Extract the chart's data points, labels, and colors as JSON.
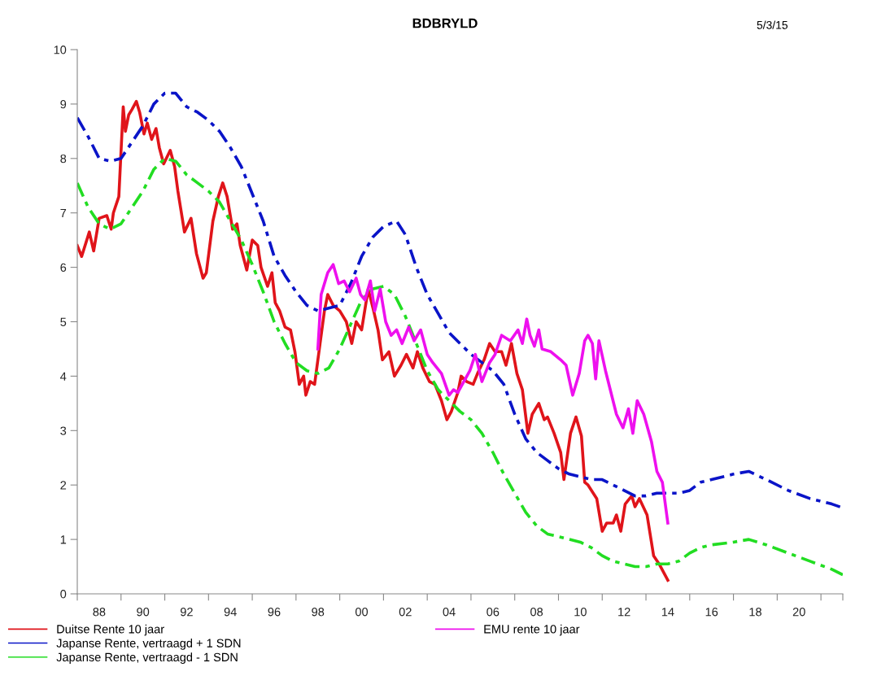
{
  "chart_data": {
    "type": "line",
    "title": "BDBRYLD",
    "annotations": [
      "5/3/15"
    ],
    "xlim": [
      1987,
      2022
    ],
    "ylim": [
      0,
      10
    ],
    "yticks": [
      0,
      1,
      2,
      3,
      4,
      5,
      6,
      7,
      8,
      9,
      10
    ],
    "xticks": [
      {
        "value": 1987,
        "label": null
      },
      {
        "value": 1988,
        "label": "88"
      },
      {
        "value": 1989,
        "label": null
      },
      {
        "value": 1990,
        "label": "90"
      },
      {
        "value": 1991,
        "label": null
      },
      {
        "value": 1992,
        "label": "92"
      },
      {
        "value": 1993,
        "label": null
      },
      {
        "value": 1994,
        "label": "94"
      },
      {
        "value": 1995,
        "label": null
      },
      {
        "value": 1996,
        "label": "96"
      },
      {
        "value": 1997,
        "label": null
      },
      {
        "value": 1998,
        "label": "98"
      },
      {
        "value": 1999,
        "label": null
      },
      {
        "value": 2000,
        "label": "00"
      },
      {
        "value": 2001,
        "label": null
      },
      {
        "value": 2002,
        "label": "02"
      },
      {
        "value": 2003,
        "label": null
      },
      {
        "value": 2004,
        "label": "04"
      },
      {
        "value": 2005,
        "label": null
      },
      {
        "value": 2006,
        "label": "06"
      },
      {
        "value": 2007,
        "label": null
      },
      {
        "value": 2008,
        "label": "08"
      },
      {
        "value": 2009,
        "label": null
      },
      {
        "value": 2010,
        "label": "10"
      },
      {
        "value": 2011,
        "label": null
      },
      {
        "value": 2012,
        "label": "12"
      },
      {
        "value": 2013,
        "label": null
      },
      {
        "value": 2014,
        "label": "14"
      },
      {
        "value": 2015,
        "label": null
      },
      {
        "value": 2016,
        "label": "16"
      },
      {
        "value": 2017,
        "label": null
      },
      {
        "value": 2018,
        "label": "18"
      },
      {
        "value": 2019,
        "label": null
      },
      {
        "value": 2020,
        "label": "20"
      },
      {
        "value": 2021,
        "label": null
      },
      {
        "value": 2022,
        "label": null
      }
    ],
    "grid": false,
    "legend": "bottom",
    "series": [
      {
        "name": "Duitse Rente 10 jaar",
        "color": "#e0141a",
        "line_style": "solid",
        "x": [
          1987.0,
          1987.2,
          1987.55,
          1987.75,
          1988.0,
          1988.35,
          1988.55,
          1988.65,
          1988.9,
          1989.1,
          1989.2,
          1989.35,
          1989.5,
          1989.7,
          1989.85,
          1990.05,
          1990.2,
          1990.4,
          1990.6,
          1990.75,
          1990.95,
          1991.25,
          1991.45,
          1991.6,
          1991.9,
          1992.2,
          1992.45,
          1992.75,
          1992.9,
          1993.2,
          1993.45,
          1993.65,
          1993.85,
          1994.1,
          1994.3,
          1994.45,
          1994.75,
          1995.0,
          1995.25,
          1995.4,
          1995.7,
          1995.9,
          1996.05,
          1996.25,
          1996.5,
          1996.75,
          1996.95,
          1997.15,
          1997.35,
          1997.45,
          1997.65,
          1997.85,
          1998.1,
          1998.3,
          1998.45,
          1998.7,
          1999.0,
          1999.3,
          1999.55,
          1999.75,
          2000.0,
          2000.3,
          2000.55,
          2000.75,
          2000.95,
          2001.25,
          2001.5,
          2001.8,
          2002.05,
          2002.35,
          2002.55,
          2002.8,
          2003.1,
          2003.35,
          2003.65,
          2003.9,
          2004.1,
          2004.4,
          2004.55,
          2004.8,
          2005.1,
          2005.3,
          2005.6,
          2005.85,
          2006.1,
          2006.4,
          2006.6,
          2006.85,
          2007.1,
          2007.35,
          2007.6,
          2007.8,
          2008.1,
          2008.35,
          2008.5,
          2008.8,
          2009.1,
          2009.25,
          2009.55,
          2009.8,
          2010.05,
          2010.2,
          2010.35,
          2010.75,
          2011.0,
          2011.2,
          2011.5,
          2011.65,
          2011.85,
          2012.05,
          2012.35,
          2012.5,
          2012.7,
          2013.05,
          2013.35,
          2013.6,
          2014.0
        ],
        "values": [
          6.4,
          6.2,
          6.65,
          6.3,
          6.9,
          6.95,
          6.7,
          7.0,
          7.3,
          8.95,
          8.5,
          8.8,
          8.9,
          9.05,
          8.85,
          8.45,
          8.65,
          8.35,
          8.55,
          8.2,
          7.9,
          8.15,
          7.85,
          7.4,
          6.65,
          6.9,
          6.25,
          5.8,
          5.9,
          6.85,
          7.3,
          7.55,
          7.3,
          6.7,
          6.8,
          6.4,
          5.95,
          6.5,
          6.4,
          6.0,
          5.65,
          5.9,
          5.35,
          5.2,
          4.9,
          4.85,
          4.45,
          3.85,
          4.0,
          3.65,
          3.9,
          3.85,
          4.6,
          5.2,
          5.5,
          5.3,
          5.2,
          5.0,
          4.6,
          5.0,
          4.85,
          5.6,
          5.2,
          4.85,
          4.3,
          4.45,
          4.0,
          4.2,
          4.4,
          4.15,
          4.45,
          4.15,
          3.9,
          3.85,
          3.55,
          3.2,
          3.35,
          3.7,
          4.0,
          3.9,
          3.85,
          4.05,
          4.3,
          4.6,
          4.45,
          4.45,
          4.2,
          4.6,
          4.05,
          3.75,
          2.95,
          3.3,
          3.5,
          3.2,
          3.25,
          2.95,
          2.6,
          2.1,
          2.95,
          3.25,
          2.9,
          2.05,
          2.0,
          1.75,
          1.15,
          1.3,
          1.3,
          1.45,
          1.15,
          1.65,
          1.8,
          1.6,
          1.75,
          1.45,
          0.7,
          0.55,
          0.25
        ]
      },
      {
        "name": "Japanse Rente, vertraagd + 1 SDN",
        "color": "#0a14c8",
        "line_style": "dashed",
        "x": [
          1987.0,
          1987.5,
          1988.0,
          1988.5,
          1989.0,
          1989.5,
          1990.0,
          1990.5,
          1991.0,
          1991.5,
          1992.0,
          1992.5,
          1993.0,
          1993.5,
          1994.0,
          1994.5,
          1995.0,
          1995.5,
          1996.0,
          1996.5,
          1997.0,
          1997.5,
          1998.0,
          1998.5,
          1999.0,
          1999.5,
          2000.0,
          2000.5,
          2001.0,
          2001.6,
          2002.0,
          2002.5,
          2003.0,
          2003.5,
          2004.0,
          2004.5,
          2005.0,
          2005.5,
          2006.0,
          2006.5,
          2007.0,
          2007.5,
          2008.0,
          2008.5,
          2009.0,
          2009.5,
          2010.0,
          2010.5,
          2011.0,
          2011.5,
          2012.0,
          2012.5,
          2013.0,
          2013.5,
          2014.0,
          2014.5,
          2015.0,
          2015.5,
          2016.0,
          2017.0,
          2017.7,
          2018.5,
          2019.5,
          2020.5,
          2021.5,
          2022.0
        ],
        "values": [
          8.75,
          8.4,
          8.0,
          7.95,
          8.0,
          8.3,
          8.6,
          9.0,
          9.2,
          9.2,
          8.95,
          8.85,
          8.7,
          8.5,
          8.2,
          7.85,
          7.35,
          6.85,
          6.2,
          5.85,
          5.55,
          5.3,
          5.2,
          5.25,
          5.3,
          5.7,
          6.2,
          6.55,
          6.75,
          6.85,
          6.6,
          6.0,
          5.5,
          5.15,
          4.8,
          4.6,
          4.4,
          4.25,
          4.1,
          3.85,
          3.3,
          2.85,
          2.6,
          2.45,
          2.3,
          2.2,
          2.15,
          2.1,
          2.1,
          2.0,
          1.9,
          1.8,
          1.8,
          1.85,
          1.85,
          1.85,
          1.9,
          2.05,
          2.1,
          2.2,
          2.25,
          2.1,
          1.9,
          1.75,
          1.65,
          1.58
        ]
      },
      {
        "name": "Japanse Rente, vertraagd - 1 SDN",
        "color": "#22dd22",
        "line_style": "dashed",
        "x": [
          1987.0,
          1987.5,
          1988.0,
          1988.5,
          1989.0,
          1989.5,
          1990.0,
          1990.5,
          1991.0,
          1991.5,
          1992.0,
          1992.5,
          1993.0,
          1993.5,
          1994.0,
          1994.5,
          1995.0,
          1995.5,
          1996.0,
          1996.5,
          1997.0,
          1997.5,
          1998.0,
          1998.5,
          1999.0,
          1999.5,
          2000.0,
          2000.5,
          2001.0,
          2001.5,
          2002.0,
          2002.5,
          2003.0,
          2003.5,
          2004.0,
          2004.5,
          2005.0,
          2005.5,
          2006.0,
          2006.5,
          2007.0,
          2007.5,
          2008.0,
          2008.5,
          2009.0,
          2009.5,
          2010.0,
          2010.5,
          2011.0,
          2011.5,
          2012.0,
          2012.5,
          2013.0,
          2013.5,
          2014.0,
          2014.5,
          2015.0,
          2015.5,
          2016.0,
          2017.0,
          2017.7,
          2018.5,
          2019.5,
          2020.5,
          2021.5,
          2022.0
        ],
        "values": [
          7.55,
          7.1,
          6.8,
          6.7,
          6.8,
          7.1,
          7.4,
          7.8,
          8.0,
          7.95,
          7.7,
          7.55,
          7.4,
          7.2,
          6.85,
          6.5,
          6.05,
          5.55,
          5.0,
          4.6,
          4.25,
          4.1,
          4.05,
          4.15,
          4.5,
          4.95,
          5.4,
          5.6,
          5.65,
          5.5,
          5.1,
          4.6,
          4.1,
          3.75,
          3.55,
          3.35,
          3.2,
          2.95,
          2.6,
          2.2,
          1.85,
          1.5,
          1.25,
          1.1,
          1.05,
          1.0,
          0.95,
          0.85,
          0.7,
          0.6,
          0.55,
          0.5,
          0.5,
          0.55,
          0.55,
          0.6,
          0.75,
          0.85,
          0.9,
          0.95,
          1.0,
          0.9,
          0.75,
          0.6,
          0.45,
          0.35
        ]
      },
      {
        "name": "EMU rente 10 jaar",
        "color": "#ee10ee",
        "line_style": "solid",
        "x": [
          1998.0,
          1998.15,
          1998.45,
          1998.7,
          1998.95,
          1999.2,
          1999.45,
          1999.75,
          1999.95,
          2000.15,
          2000.4,
          2000.6,
          2000.85,
          2001.1,
          2001.35,
          2001.6,
          2001.85,
          2002.15,
          2002.4,
          2002.7,
          2003.0,
          2003.25,
          2003.65,
          2004.0,
          2004.2,
          2004.4,
          2004.95,
          2005.2,
          2005.5,
          2005.85,
          2006.1,
          2006.4,
          2006.8,
          2007.15,
          2007.35,
          2007.55,
          2007.7,
          2007.9,
          2008.1,
          2008.25,
          2008.65,
          2009.1,
          2009.35,
          2009.65,
          2009.95,
          2010.2,
          2010.35,
          2010.55,
          2010.7,
          2010.85,
          2011.15,
          2011.4,
          2011.65,
          2011.95,
          2012.2,
          2012.4,
          2012.6,
          2012.9,
          2013.25,
          2013.5,
          2013.75,
          2014.0
        ],
        "values": [
          4.5,
          5.5,
          5.9,
          6.05,
          5.7,
          5.75,
          5.55,
          5.8,
          5.5,
          5.4,
          5.75,
          5.2,
          5.6,
          5.0,
          4.75,
          4.85,
          4.6,
          4.9,
          4.65,
          4.85,
          4.4,
          4.25,
          4.05,
          3.65,
          3.75,
          3.7,
          4.1,
          4.4,
          3.9,
          4.25,
          4.4,
          4.75,
          4.65,
          4.85,
          4.6,
          5.05,
          4.75,
          4.55,
          4.85,
          4.5,
          4.45,
          4.3,
          4.2,
          3.65,
          4.05,
          4.65,
          4.75,
          4.6,
          3.95,
          4.65,
          4.1,
          3.7,
          3.3,
          3.05,
          3.4,
          2.95,
          3.55,
          3.3,
          2.8,
          2.25,
          2.05,
          1.3
        ]
      }
    ]
  }
}
